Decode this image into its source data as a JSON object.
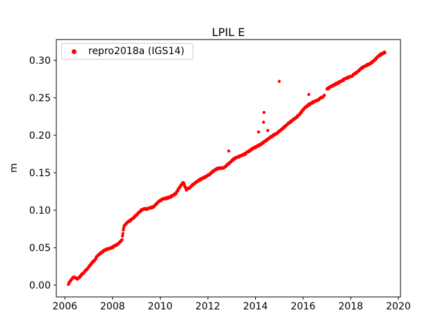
{
  "chart_data": {
    "type": "scatter",
    "title": "LPIL E",
    "xlabel": "",
    "ylabel": "m",
    "xlim": [
      2005.64,
      2020.09
    ],
    "ylim": [
      -0.0157,
      0.3278
    ],
    "xticks": [
      2006,
      2008,
      2010,
      2012,
      2014,
      2016,
      2018,
      2020
    ],
    "yticks": [
      0.0,
      0.05,
      0.1,
      0.15,
      0.2,
      0.25,
      0.3
    ],
    "ytick_labels": [
      "0.00",
      "0.05",
      "0.10",
      "0.15",
      "0.20",
      "0.25",
      "0.30"
    ],
    "grid": false,
    "background": "#ffffff",
    "axis_color": "#000000",
    "legend": {
      "location": "upper left",
      "entries": [
        {
          "label": "repro2018a (IGS14)",
          "color": "#ff0000",
          "marker": "dot"
        }
      ]
    },
    "series": [
      {
        "name": "repro2018a (IGS14)",
        "color": "#ff0000",
        "marker": ".",
        "marker_radius_px": 2.2,
        "sample_step_years": 0.018,
        "jitter_m": 0.0008,
        "wiggle_amp_m": 0.0006,
        "wiggle_freq_per_year": 1.3,
        "trend_knots": [
          [
            2006.15,
            0.001
          ],
          [
            2006.25,
            0.006
          ],
          [
            2006.38,
            0.011
          ],
          [
            2006.52,
            0.009
          ],
          [
            2006.7,
            0.014
          ],
          [
            2006.9,
            0.02
          ],
          [
            2007.05,
            0.026
          ],
          [
            2007.2,
            0.032
          ],
          [
            2007.35,
            0.039
          ],
          [
            2007.5,
            0.043
          ],
          [
            2007.65,
            0.046
          ],
          [
            2007.9,
            0.049
          ],
          [
            2008.1,
            0.053
          ],
          [
            2008.3,
            0.057
          ],
          [
            2008.4,
            0.06
          ],
          [
            2008.44,
            0.07
          ],
          [
            2008.48,
            0.078
          ],
          [
            2008.6,
            0.083
          ],
          [
            2008.8,
            0.088
          ],
          [
            2009.0,
            0.094
          ],
          [
            2009.2,
            0.0995
          ],
          [
            2009.45,
            0.102
          ],
          [
            2009.7,
            0.105
          ],
          [
            2009.9,
            0.11
          ],
          [
            2010.1,
            0.114
          ],
          [
            2010.4,
            0.118
          ],
          [
            2010.65,
            0.122
          ],
          [
            2010.85,
            0.131
          ],
          [
            2010.97,
            0.137
          ],
          [
            2011.1,
            0.128
          ],
          [
            2011.22,
            0.13
          ],
          [
            2011.35,
            0.134
          ],
          [
            2011.55,
            0.138
          ],
          [
            2011.8,
            0.143
          ],
          [
            2012.0,
            0.147
          ],
          [
            2012.2,
            0.151
          ],
          [
            2012.4,
            0.155
          ],
          [
            2012.65,
            0.157
          ],
          [
            2012.9,
            0.163
          ],
          [
            2013.1,
            0.168
          ],
          [
            2013.4,
            0.173
          ],
          [
            2013.7,
            0.178
          ],
          [
            2014.0,
            0.184
          ],
          [
            2014.3,
            0.19
          ],
          [
            2014.6,
            0.196
          ],
          [
            2014.9,
            0.203
          ],
          [
            2015.2,
            0.211
          ],
          [
            2015.5,
            0.218
          ],
          [
            2015.8,
            0.227
          ],
          [
            2016.1,
            0.237
          ],
          [
            2016.4,
            0.244
          ],
          [
            2016.7,
            0.249
          ],
          [
            2016.88,
            0.252
          ],
          [
            2017.0,
            0.261
          ],
          [
            2017.3,
            0.268
          ],
          [
            2017.6,
            0.272
          ],
          [
            2017.9,
            0.277
          ],
          [
            2018.2,
            0.283
          ],
          [
            2018.5,
            0.29
          ],
          [
            2018.8,
            0.296
          ],
          [
            2019.05,
            0.302
          ],
          [
            2019.25,
            0.307
          ],
          [
            2019.45,
            0.311
          ]
        ],
        "outliers": [
          [
            2012.88,
            0.179
          ],
          [
            2014.13,
            0.2045
          ],
          [
            2014.34,
            0.2175
          ],
          [
            2014.36,
            0.2305
          ],
          [
            2014.52,
            0.2065
          ],
          [
            2015.0,
            0.272
          ],
          [
            2016.24,
            0.2545
          ]
        ],
        "gaps": [
          [
            2016.9,
            2016.99
          ]
        ]
      }
    ]
  }
}
